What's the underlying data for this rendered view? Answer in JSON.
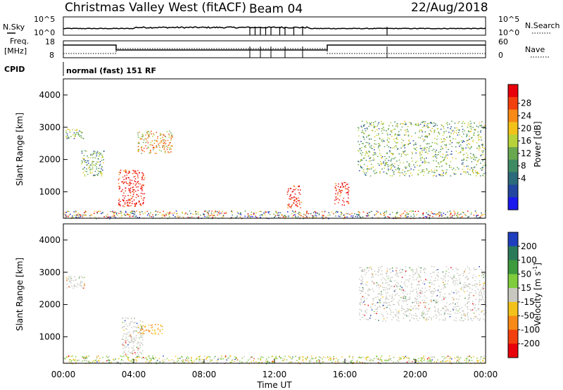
{
  "header": {
    "station": "Christmas Valley West (fitACF)",
    "beam": "Beam 04",
    "date": "22/Aug/2018"
  },
  "top_panels": {
    "nsky_label": "N.Sky",
    "nsearch_label": "N.Search",
    "noise_ticks": [
      "10^5",
      "10^0"
    ],
    "freq_label_1": "Freq.",
    "freq_label_2": "[MHz]",
    "freq_ticks": [
      "18",
      "8"
    ],
    "nave_label": "Nave",
    "nave_ticks": [
      "60",
      "0"
    ],
    "cpid_label": "CPID",
    "cpid_text": "normal (fast) 151 RF"
  },
  "power_panel": {
    "ylabel": "Slant Range [km]",
    "yticks": [
      "4000",
      "3000",
      "2000",
      "1000"
    ],
    "colorbar_label": "Power [dB]",
    "colorbar_ticks": [
      "28",
      "24",
      "20",
      "16",
      "12",
      "8",
      "4"
    ],
    "colorbar_colors": [
      "#e8000a",
      "#f2400e",
      "#f78a16",
      "#f2c21a",
      "#b8d33a",
      "#6aa84f",
      "#3d8a63",
      "#2a6a7a",
      "#2346a0",
      "#1a1aee"
    ]
  },
  "velocity_panel": {
    "ylabel": "Slant Range [km]",
    "yticks": [
      "4000",
      "3000",
      "2000",
      "1000"
    ],
    "colorbar_label": "Velocity [m s",
    "colorbar_unit_exp": "-1",
    "colorbar_label_end": "]",
    "colorbar_ticks": [
      "200",
      "100",
      "50",
      "15",
      "-15",
      "-50",
      "-100",
      "-200"
    ],
    "colorbar_colors": [
      "#1f3fbf",
      "#2a7a5a",
      "#3d9a3d",
      "#7fcc3d",
      "#c8c8c0",
      "#f2c21a",
      "#f78a16",
      "#f2400e",
      "#e8000a"
    ]
  },
  "xaxis": {
    "label": "Time UT",
    "ticks": [
      "00:00",
      "04:00",
      "08:00",
      "12:00",
      "16:00",
      "20:00",
      "00:00"
    ]
  },
  "chart_data": {
    "type": "heatmap",
    "x_range_hours": [
      0,
      24
    ],
    "y_range_km": [
      180,
      4500
    ],
    "power_scatter_regions": [
      {
        "t0": 0.1,
        "t1": 1.2,
        "r0": 2650,
        "r1": 2950,
        "level": "mid"
      },
      {
        "t0": 1.0,
        "t1": 2.3,
        "r0": 1500,
        "r1": 2300,
        "level": "mid"
      },
      {
        "t0": 3.1,
        "t1": 4.6,
        "r0": 550,
        "r1": 1700,
        "level": "high"
      },
      {
        "t0": 4.2,
        "t1": 6.2,
        "r0": 2200,
        "r1": 2900,
        "level": "mid-high"
      },
      {
        "t0": 12.7,
        "t1": 13.5,
        "r0": 500,
        "r1": 1200,
        "level": "high"
      },
      {
        "t0": 15.4,
        "t1": 16.2,
        "r0": 600,
        "r1": 1300,
        "level": "high"
      },
      {
        "t0": 16.7,
        "t1": 24.0,
        "r0": 1500,
        "r1": 3200,
        "level": "mid"
      },
      {
        "t0": 0.0,
        "t1": 24.0,
        "r0": 180,
        "r1": 420,
        "level": "mixed"
      }
    ],
    "velocity_scatter_regions": [
      {
        "t0": 0.1,
        "t1": 1.2,
        "r0": 2500,
        "r1": 2900,
        "level": "low"
      },
      {
        "t0": 3.3,
        "t1": 4.5,
        "r0": 450,
        "r1": 1600,
        "level": "low"
      },
      {
        "t0": 4.2,
        "t1": 5.6,
        "r0": 1100,
        "r1": 1400,
        "level": "negative"
      },
      {
        "t0": 16.8,
        "t1": 24.0,
        "r0": 1500,
        "r1": 3200,
        "level": "low"
      },
      {
        "t0": 0.0,
        "t1": 24.0,
        "r0": 180,
        "r1": 420,
        "level": "mixed"
      }
    ]
  }
}
